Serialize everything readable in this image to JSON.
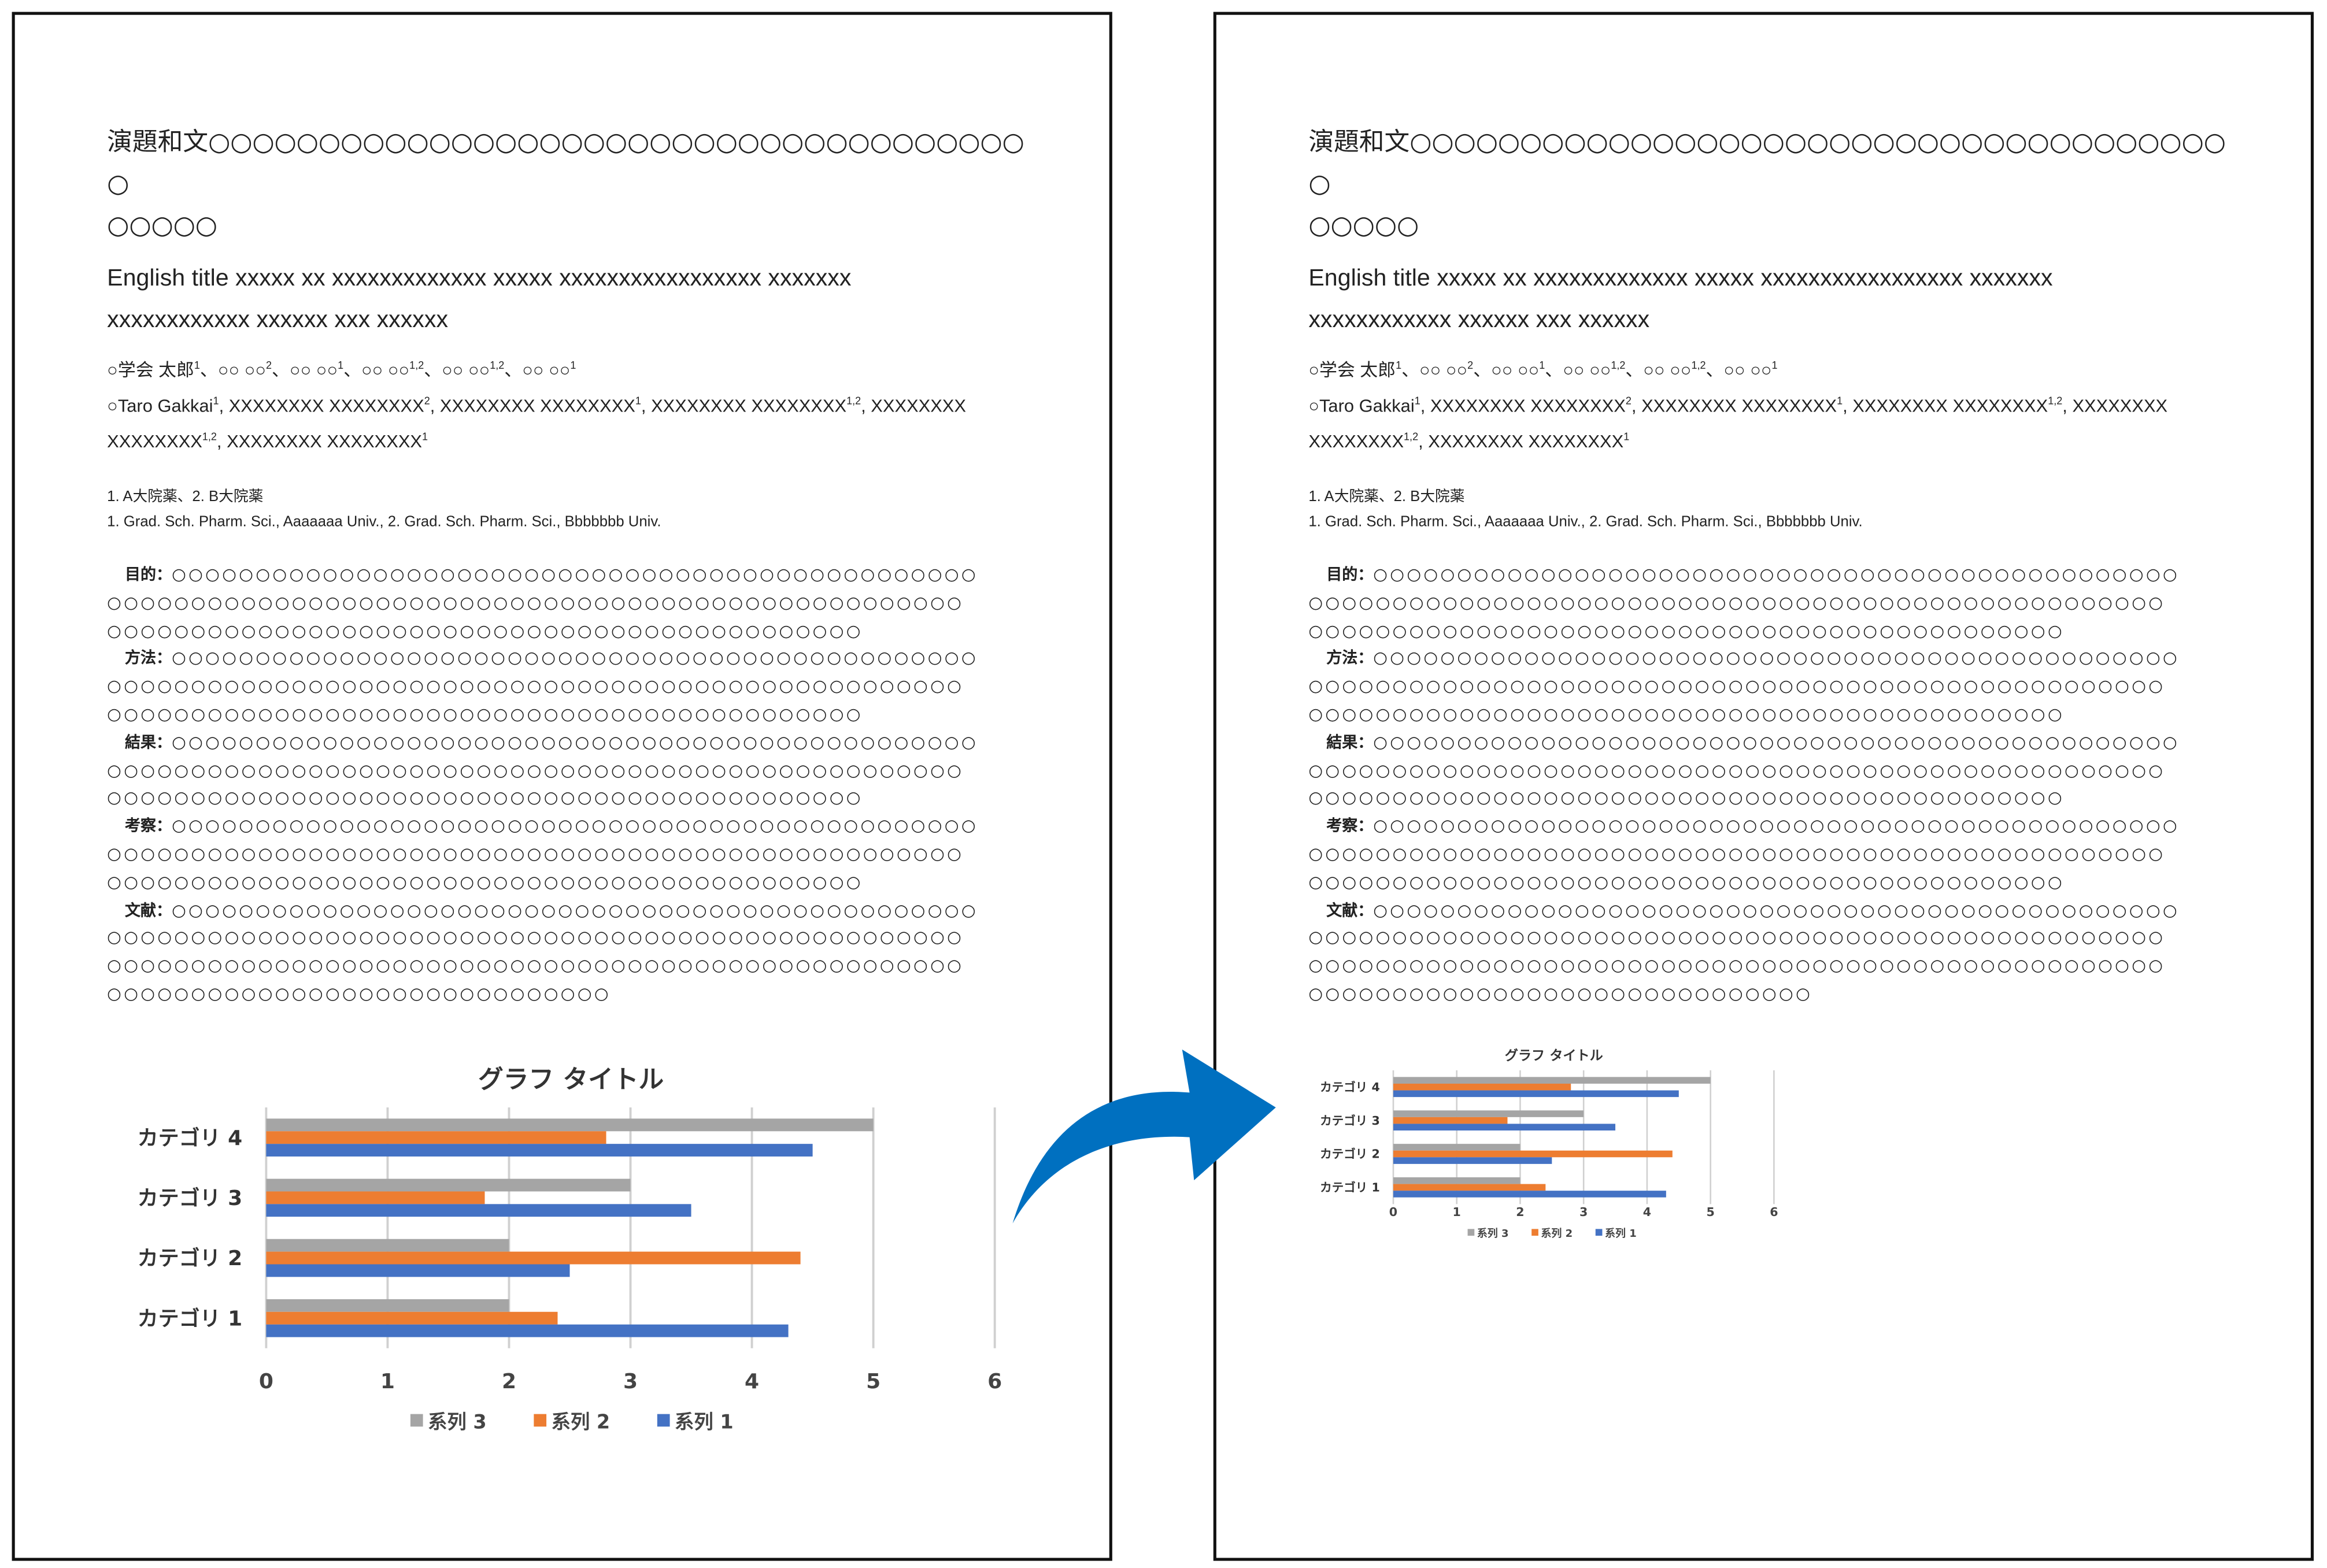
{
  "document": {
    "title_ja_lines": [
      "演題和文○○○○○○○○○○○○○○○○○○○○○○○○○○○○○○○○○○○○○○",
      "○○○○○"
    ],
    "title_en_lines": [
      "English title xxxxx xx xxxxxxxxxxxxx xxxxx xxxxxxxxxxxxxxxxx xxxxxxx",
      "xxxxxxxxxxxx xxxxxx xxx xxxxxx"
    ],
    "authors_ja": [
      {
        "name": "○学会 太郎",
        "sup": "1"
      },
      {
        "name": "○○ ○○",
        "sup": "2"
      },
      {
        "name": "○○ ○○",
        "sup": "1"
      },
      {
        "name": "○○ ○○",
        "sup": "1,2"
      },
      {
        "name": "○○ ○○",
        "sup": "1,2"
      },
      {
        "name": "○○ ○○",
        "sup": "1"
      }
    ],
    "authors_en": [
      {
        "name": "○Taro Gakkai",
        "sup": "1"
      },
      {
        "name": "XXXXXXXX XXXXXXXX",
        "sup": "2"
      },
      {
        "name": "XXXXXXXX XXXXXXXX",
        "sup": "1"
      },
      {
        "name": "XXXXXXXX XXXXXXXX",
        "sup": "1,2"
      },
      {
        "name": "XXXXXXXX XXXXXXXX",
        "sup": "1,2"
      },
      {
        "name": "XXXXXXXX XXXXXXXX",
        "sup": "1"
      }
    ],
    "affiliation_ja": "1. A大院薬、2. B大院薬",
    "affiliation_en": "1. Grad. Sch. Pharm. Sci., Aaaaaaa Univ., 2. Grad. Sch. Pharm. Sci., Bbbbbbb Univ.",
    "sections": [
      {
        "label": "目的：",
        "lines": [
          "○○○○○○○○○○○○○○○○○○○○○○○○○○○○○○○○○○○○○○○○○○○○○○○○",
          "○○○○○○○○○○○○○○○○○○○○○○○○○○○○○○○○○○○○○○○○○○○○○○○○○○○",
          "○○○○○○○○○○○○○○○○○○○○○○○○○○○○○○○○○○○○○○○○○○○○○"
        ]
      },
      {
        "label": "方法：",
        "lines": [
          "○○○○○○○○○○○○○○○○○○○○○○○○○○○○○○○○○○○○○○○○○○○○○○○○",
          "○○○○○○○○○○○○○○○○○○○○○○○○○○○○○○○○○○○○○○○○○○○○○○○○○○○",
          "○○○○○○○○○○○○○○○○○○○○○○○○○○○○○○○○○○○○○○○○○○○○○"
        ]
      },
      {
        "label": "結果：",
        "lines": [
          "○○○○○○○○○○○○○○○○○○○○○○○○○○○○○○○○○○○○○○○○○○○○○○○○",
          "○○○○○○○○○○○○○○○○○○○○○○○○○○○○○○○○○○○○○○○○○○○○○○○○○○○",
          "○○○○○○○○○○○○○○○○○○○○○○○○○○○○○○○○○○○○○○○○○○○○○"
        ]
      },
      {
        "label": "考察：",
        "lines": [
          "○○○○○○○○○○○○○○○○○○○○○○○○○○○○○○○○○○○○○○○○○○○○○○○○",
          "○○○○○○○○○○○○○○○○○○○○○○○○○○○○○○○○○○○○○○○○○○○○○○○○○○○",
          "○○○○○○○○○○○○○○○○○○○○○○○○○○○○○○○○○○○○○○○○○○○○○"
        ]
      },
      {
        "label": "文献：",
        "lines": [
          "○○○○○○○○○○○○○○○○○○○○○○○○○○○○○○○○○○○○○○○○○○○○○○○○",
          "○○○○○○○○○○○○○○○○○○○○○○○○○○○○○○○○○○○○○○○○○○○○○○○○○○○",
          "○○○○○○○○○○○○○○○○○○○○○○○○○○○○○○○○○○○○○○○○○○○○○○○○○○○",
          "○○○○○○○○○○○○○○○○○○○○○○○○○○○○○○"
        ]
      }
    ]
  },
  "arrow_color": "#0070c0",
  "chart_data": {
    "type": "bar",
    "orientation": "horizontal",
    "title": "グラフ タイトル",
    "categories": [
      "カテゴリ 1",
      "カテゴリ 2",
      "カテゴリ 3",
      "カテゴリ 4"
    ],
    "series": [
      {
        "name": "系列 1",
        "color": "#4472c4",
        "values": [
          4.3,
          2.5,
          3.5,
          4.5
        ]
      },
      {
        "name": "系列 2",
        "color": "#ed7d31",
        "values": [
          2.4,
          4.4,
          1.8,
          2.8
        ]
      },
      {
        "name": "系列 3",
        "color": "#a5a5a5",
        "values": [
          2,
          2,
          3,
          5
        ]
      }
    ],
    "xlim": [
      0,
      6
    ],
    "xticks": [
      "0",
      "1",
      "2",
      "3",
      "4",
      "5",
      "6"
    ],
    "grid": true,
    "legend": "bottom",
    "legend_order": [
      "系列 3",
      "系列 2",
      "系列 1"
    ]
  }
}
